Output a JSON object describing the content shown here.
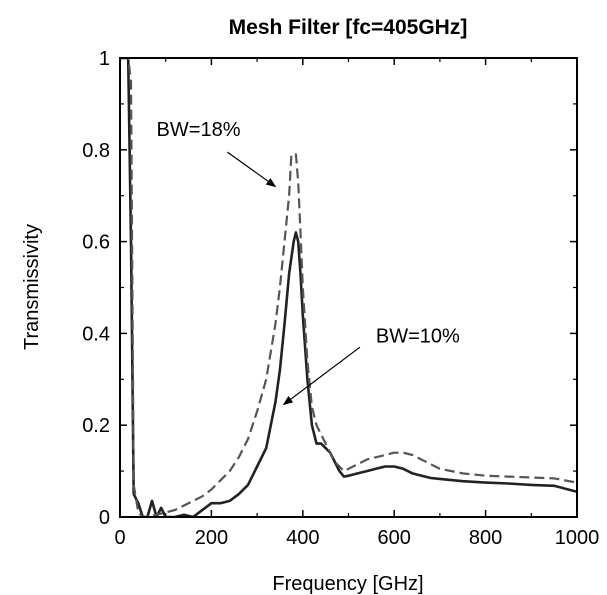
{
  "chart_data": {
    "type": "line",
    "title": "Mesh Filter  [fc=405GHz]",
    "xlabel": "Frequency [GHz]",
    "ylabel": "Transmissivity",
    "xlim": [
      0,
      1000
    ],
    "ylim": [
      0,
      1
    ],
    "x_ticks": [
      0,
      200,
      400,
      600,
      800,
      1000
    ],
    "y_ticks": [
      0,
      0.2,
      0.4,
      0.6,
      0.8,
      1
    ],
    "x_tick_labels": [
      "0",
      "200",
      "400",
      "600",
      "800",
      "1000"
    ],
    "y_tick_labels": [
      "0",
      "0.2",
      "0.4",
      "0.6",
      "0.8",
      "1"
    ],
    "grid": false,
    "series": [
      {
        "style": "solid",
        "color": "#222222",
        "x": [
          0,
          6,
          12,
          18,
          24,
          30,
          40,
          50,
          60,
          70,
          80,
          90,
          100,
          120,
          140,
          160,
          180,
          200,
          220,
          240,
          260,
          280,
          300,
          320,
          340,
          350,
          360,
          370,
          380,
          385,
          390,
          395,
          400,
          410,
          420,
          430,
          440,
          450,
          460,
          470,
          480,
          490,
          500,
          520,
          540,
          560,
          580,
          600,
          620,
          640,
          660,
          680,
          700,
          750,
          800,
          850,
          900,
          950,
          1000
        ],
        "y": [
          1.0,
          1.0,
          1.0,
          1.0,
          0.6,
          0.05,
          0.03,
          0.0,
          0.0,
          0.035,
          0.0,
          0.02,
          0.0,
          0.0,
          0.005,
          0.0,
          0.015,
          0.03,
          0.03,
          0.035,
          0.05,
          0.07,
          0.11,
          0.15,
          0.25,
          0.32,
          0.42,
          0.53,
          0.6,
          0.62,
          0.6,
          0.53,
          0.44,
          0.3,
          0.2,
          0.16,
          0.16,
          0.15,
          0.14,
          0.12,
          0.1,
          0.088,
          0.09,
          0.095,
          0.1,
          0.105,
          0.11,
          0.11,
          0.105,
          0.095,
          0.09,
          0.085,
          0.083,
          0.078,
          0.075,
          0.073,
          0.07,
          0.068,
          0.055
        ]
      },
      {
        "style": "dashed",
        "color": "#555555",
        "x": [
          0,
          6,
          12,
          18,
          24,
          30,
          40,
          50,
          60,
          80,
          100,
          120,
          140,
          160,
          180,
          200,
          220,
          240,
          260,
          280,
          300,
          320,
          340,
          350,
          360,
          370,
          375,
          385,
          390,
          395,
          400,
          410,
          420,
          430,
          440,
          450,
          460,
          470,
          480,
          490,
          500,
          520,
          540,
          560,
          580,
          600,
          620,
          640,
          660,
          680,
          700,
          750,
          800,
          850,
          900,
          950,
          1000
        ],
        "y": [
          1.0,
          1.0,
          1.0,
          1.0,
          0.95,
          0.07,
          0.01,
          0.0,
          0.0,
          0.005,
          0.01,
          0.015,
          0.025,
          0.035,
          0.045,
          0.06,
          0.08,
          0.1,
          0.13,
          0.17,
          0.23,
          0.3,
          0.42,
          0.5,
          0.6,
          0.7,
          0.79,
          0.79,
          0.73,
          0.62,
          0.5,
          0.34,
          0.24,
          0.2,
          0.18,
          0.16,
          0.14,
          0.12,
          0.11,
          0.1,
          0.105,
          0.115,
          0.125,
          0.13,
          0.135,
          0.14,
          0.14,
          0.135,
          0.125,
          0.115,
          0.105,
          0.095,
          0.09,
          0.088,
          0.086,
          0.084,
          0.075
        ]
      }
    ],
    "annotations": [
      {
        "text": "BW=18%",
        "label_x": 80,
        "label_y": 0.83,
        "arrow_from": [
          235,
          0.795
        ],
        "arrow_to": [
          340,
          0.72
        ]
      },
      {
        "text": "BW=10%",
        "label_x": 560,
        "label_y": 0.38,
        "arrow_from": [
          525,
          0.37
        ],
        "arrow_to": [
          358,
          0.245
        ]
      }
    ]
  }
}
